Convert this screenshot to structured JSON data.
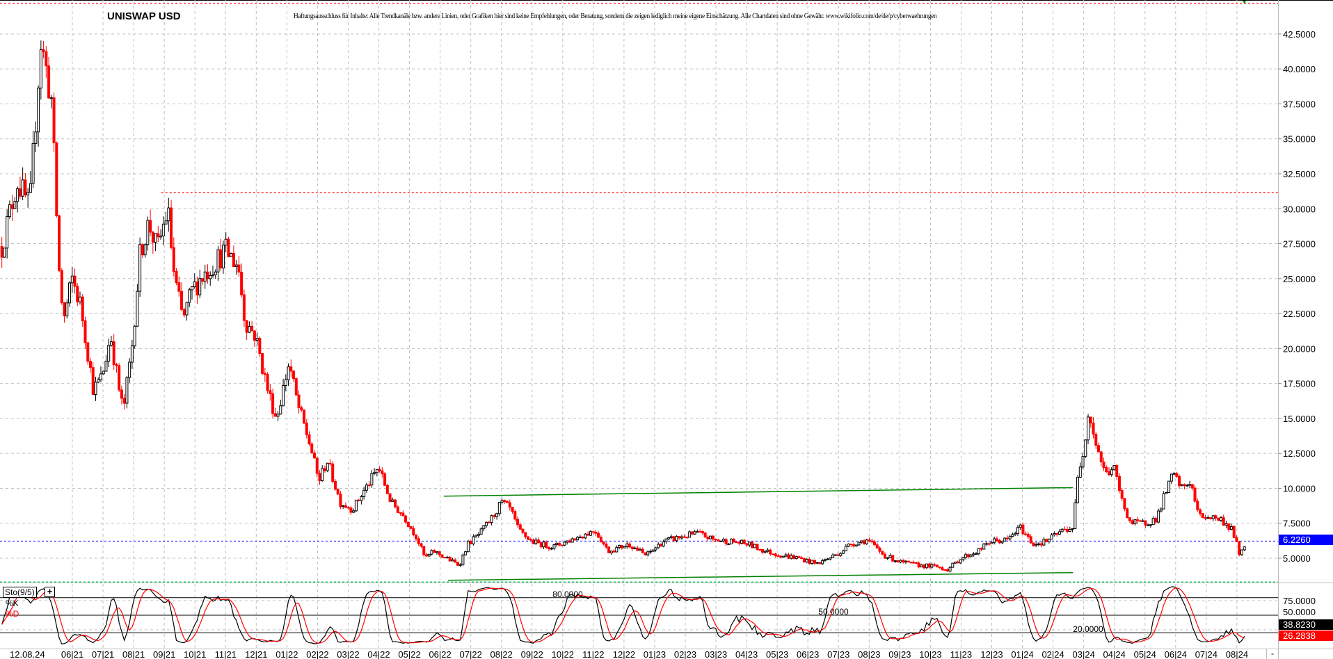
{
  "header": {
    "title": "UNISWAP USD",
    "disclaimer": "Haftungsausschluss für Inhalte: Alle Trendkanäle bzw. andere Linien, oder Grafiken hier sind keine Empfehlungen, oder Beratung, sondern die zeigen lediglich meine eigene Einschätzung. Alle Chartdaten sind ohne Gewähr.  www.wikifolio.com/de/de/p/cyberwaehrungen"
  },
  "colors": {
    "up": "#000000",
    "down": "#ff0000",
    "trend": "#008000",
    "current": "#0000ff",
    "resistance": "#ff0000",
    "support": "#00cc66",
    "grid": "#c0c0c0"
  },
  "chart_data": [
    {
      "type": "candlestick",
      "title": "UNISWAP USD",
      "t_unit": "months since 06/21",
      "ylim": [
        3.0,
        44.7
      ],
      "yticks": [
        "5.0000",
        "7.5000",
        "10.0000",
        "12.5000",
        "15.0000",
        "17.5000",
        "20.0000",
        "22.5000",
        "25.0000",
        "27.5000",
        "30.0000",
        "32.5000",
        "35.0000",
        "37.5000",
        "40.0000",
        "42.5000"
      ],
      "ytick_values": [
        5,
        7.5,
        10,
        12.5,
        15,
        17.5,
        20,
        22.5,
        25,
        27.5,
        30,
        32.5,
        35,
        37.5,
        40,
        42.5
      ],
      "current_price": 6.226,
      "current_price_label": "6.2260",
      "horizontal_lines": [
        {
          "name": "top-resistance",
          "price": 44.7,
          "color": "#ff0000",
          "from_t": -2.4
        },
        {
          "name": "resistance-31",
          "price": 31.15,
          "color": "#ff0000",
          "from_t": 2.9
        },
        {
          "name": "support-bottom",
          "price": 3.3,
          "color": "#00cc66",
          "from_t": -2.4
        }
      ],
      "trendlines": [
        {
          "name": "channel-top",
          "t1": 12.12,
          "p1": 9.44,
          "t2": 32.65,
          "p2": 10.05
        },
        {
          "name": "channel-bottom",
          "t1": 12.26,
          "p1": 3.42,
          "t2": 32.65,
          "p2": 3.97
        }
      ],
      "price_path": [
        [
          -2.3,
          27.3
        ],
        [
          -1.8,
          32
        ],
        [
          -1.39,
          30
        ],
        [
          -1.03,
          42
        ],
        [
          -0.69,
          38
        ],
        [
          -0.42,
          25
        ],
        [
          -0.28,
          22
        ],
        [
          0,
          25
        ],
        [
          0.28,
          23
        ],
        [
          0.69,
          17
        ],
        [
          0.97,
          18
        ],
        [
          1.25,
          21
        ],
        [
          1.53,
          17
        ],
        [
          1.66,
          15.5
        ],
        [
          1.94,
          20
        ],
        [
          2.22,
          27
        ],
        [
          2.5,
          29
        ],
        [
          2.77,
          27
        ],
        [
          3.11,
          30
        ],
        [
          3.33,
          25
        ],
        [
          3.61,
          22
        ],
        [
          3.88,
          24
        ],
        [
          4.16,
          25
        ],
        [
          4.58,
          26
        ],
        [
          4.99,
          27
        ],
        [
          5.41,
          26
        ],
        [
          5.63,
          22
        ],
        [
          5.96,
          21
        ],
        [
          6.38,
          17
        ],
        [
          6.66,
          15
        ],
        [
          7.07,
          19
        ],
        [
          7.35,
          16
        ],
        [
          7.77,
          13
        ],
        [
          8.04,
          10.5
        ],
        [
          8.32,
          12
        ],
        [
          8.74,
          9
        ],
        [
          9.15,
          8.5
        ],
        [
          9.57,
          10
        ],
        [
          9.99,
          11.5
        ],
        [
          10.4,
          9
        ],
        [
          10.82,
          8
        ],
        [
          11.23,
          6.5
        ],
        [
          11.51,
          5
        ],
        [
          11.79,
          5.5
        ],
        [
          12.21,
          5
        ],
        [
          12.62,
          4.5
        ],
        [
          12.9,
          6
        ],
        [
          13.31,
          6.8
        ],
        [
          13.73,
          8
        ],
        [
          14.01,
          9
        ],
        [
          14.29,
          8.5
        ],
        [
          14.56,
          7
        ],
        [
          14.98,
          6.2
        ],
        [
          15.67,
          5.8
        ],
        [
          16.37,
          6.4
        ],
        [
          17.06,
          7
        ],
        [
          17.48,
          5.5
        ],
        [
          18.17,
          6
        ],
        [
          18.72,
          5.2
        ],
        [
          19.28,
          6.2
        ],
        [
          19.83,
          6.5
        ],
        [
          20.39,
          6.8
        ],
        [
          20.94,
          6.3
        ],
        [
          21.5,
          6.2
        ],
        [
          22.05,
          6.0
        ],
        [
          22.61,
          5.5
        ],
        [
          23.16,
          5.2
        ],
        [
          23.72,
          5.0
        ],
        [
          24.27,
          4.6
        ],
        [
          24.69,
          5.0
        ],
        [
          25.1,
          5.5
        ],
        [
          25.38,
          6
        ],
        [
          25.94,
          6.3
        ],
        [
          26.49,
          5.2
        ],
        [
          27.05,
          4.7
        ],
        [
          27.6,
          4.5
        ],
        [
          28.16,
          4.4
        ],
        [
          28.57,
          4.2
        ],
        [
          28.99,
          5
        ],
        [
          29.54,
          5.5
        ],
        [
          29.96,
          6.2
        ],
        [
          30.51,
          6.3
        ],
        [
          30.93,
          7.2
        ],
        [
          31.35,
          6.0
        ],
        [
          31.76,
          6.2
        ],
        [
          32.32,
          7
        ],
        [
          32.65,
          7.2
        ],
        [
          32.82,
          11
        ],
        [
          33.01,
          13
        ],
        [
          33.15,
          15.5
        ],
        [
          33.43,
          13
        ],
        [
          33.7,
          11
        ],
        [
          33.98,
          11.5
        ],
        [
          34.26,
          9
        ],
        [
          34.54,
          7.5
        ],
        [
          34.95,
          7.5
        ],
        [
          35.37,
          7.8
        ],
        [
          35.64,
          9.5
        ],
        [
          35.92,
          11
        ],
        [
          36.2,
          10
        ],
        [
          36.48,
          10.5
        ],
        [
          36.75,
          8
        ],
        [
          37.03,
          8
        ],
        [
          37.45,
          7.8
        ],
        [
          37.86,
          7
        ],
        [
          38.09,
          5.2
        ],
        [
          38.28,
          6.2
        ]
      ]
    },
    {
      "type": "line",
      "title": "Sto(9/5)",
      "series": [
        {
          "name": "%K",
          "color": "#000000",
          "last": 38.823,
          "last_label": "38.8230"
        },
        {
          "name": "%D",
          "color": "#ff0000",
          "last": 26.2838,
          "last_label": "26.2838"
        }
      ],
      "ylim": [
        0,
        100
      ],
      "levels": [
        {
          "value": 80,
          "label": "80.0000"
        },
        {
          "value": 50,
          "label": "50.0000"
        },
        {
          "value": 20,
          "label": "20.0000"
        }
      ],
      "yticks": [
        "75.0000",
        "50.0000"
      ]
    }
  ],
  "xaxis": {
    "current_date": "12.08.24",
    "labels": [
      "06|21",
      "07|21",
      "08|21",
      "09|21",
      "10|21",
      "11|21",
      "12|21",
      "01|22",
      "02|22",
      "03|22",
      "04|22",
      "05|22",
      "06|22",
      "07|22",
      "08|22",
      "09|22",
      "10|22",
      "11|22",
      "12|22",
      "01|23",
      "02|23",
      "03|23",
      "04|23",
      "05|23",
      "06|23",
      "07|23",
      "08|23",
      "09|23",
      "10|23",
      "11|23",
      "12|23",
      "01|24",
      "02|24",
      "03|24",
      "04|24",
      "05|24",
      "06|24",
      "07|24",
      "08|24"
    ],
    "minus_button": "-"
  },
  "stoch_labels": {
    "box": "Sto(9/5)",
    "plus": "+",
    "k": "%K",
    "d": "%D"
  }
}
